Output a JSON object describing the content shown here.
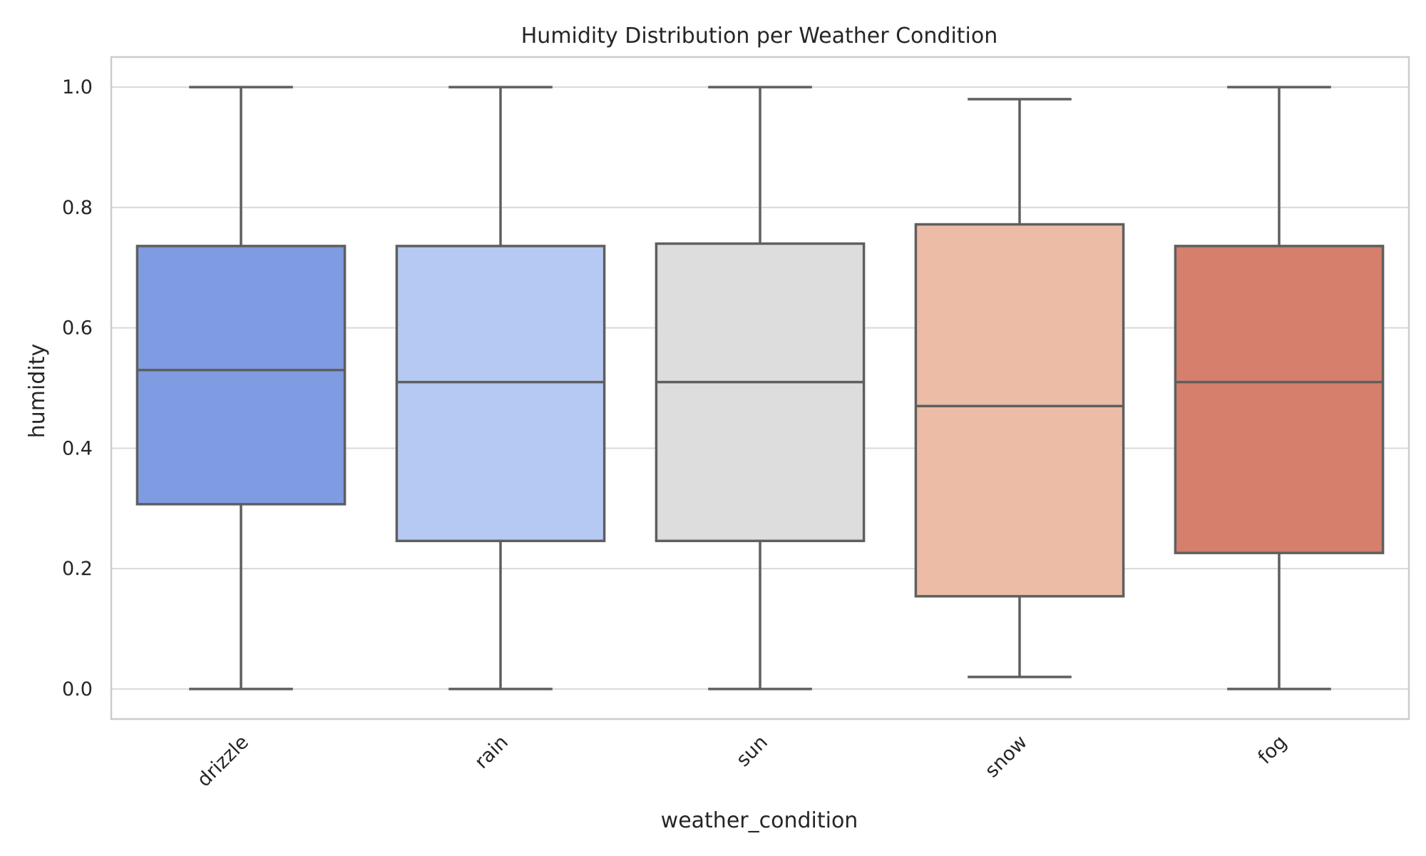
{
  "chart_data": {
    "type": "box",
    "title": "Humidity Distribution per Weather Condition",
    "xlabel": "weather_condition",
    "ylabel": "humidity",
    "ylim": [
      -0.05,
      1.05
    ],
    "yticks": [
      0.0,
      0.2,
      0.4,
      0.6,
      0.8,
      1.0
    ],
    "ytick_labels": [
      "0.0",
      "0.2",
      "0.4",
      "0.6",
      "0.8",
      "1.0"
    ],
    "grid": true,
    "categories": [
      "drizzle",
      "rain",
      "sun",
      "snow",
      "fog"
    ],
    "boxes": [
      {
        "category": "drizzle",
        "whisker_low": 0.0,
        "q1": 0.307,
        "median": 0.53,
        "q3": 0.736,
        "whisker_high": 1.0,
        "color": "#7f9be2"
      },
      {
        "category": "rain",
        "whisker_low": 0.0,
        "q1": 0.246,
        "median": 0.51,
        "q3": 0.736,
        "whisker_high": 1.0,
        "color": "#b5c9f3"
      },
      {
        "category": "sun",
        "whisker_low": 0.0,
        "q1": 0.246,
        "median": 0.51,
        "q3": 0.74,
        "whisker_high": 1.0,
        "color": "#dddddd"
      },
      {
        "category": "snow",
        "whisker_low": 0.02,
        "q1": 0.154,
        "median": 0.47,
        "q3": 0.772,
        "whisker_high": 0.98,
        "color": "#ecbca6"
      },
      {
        "category": "fog",
        "whisker_low": 0.0,
        "q1": 0.226,
        "median": 0.51,
        "q3": 0.736,
        "whisker_high": 1.0,
        "color": "#d57f6c"
      }
    ]
  }
}
